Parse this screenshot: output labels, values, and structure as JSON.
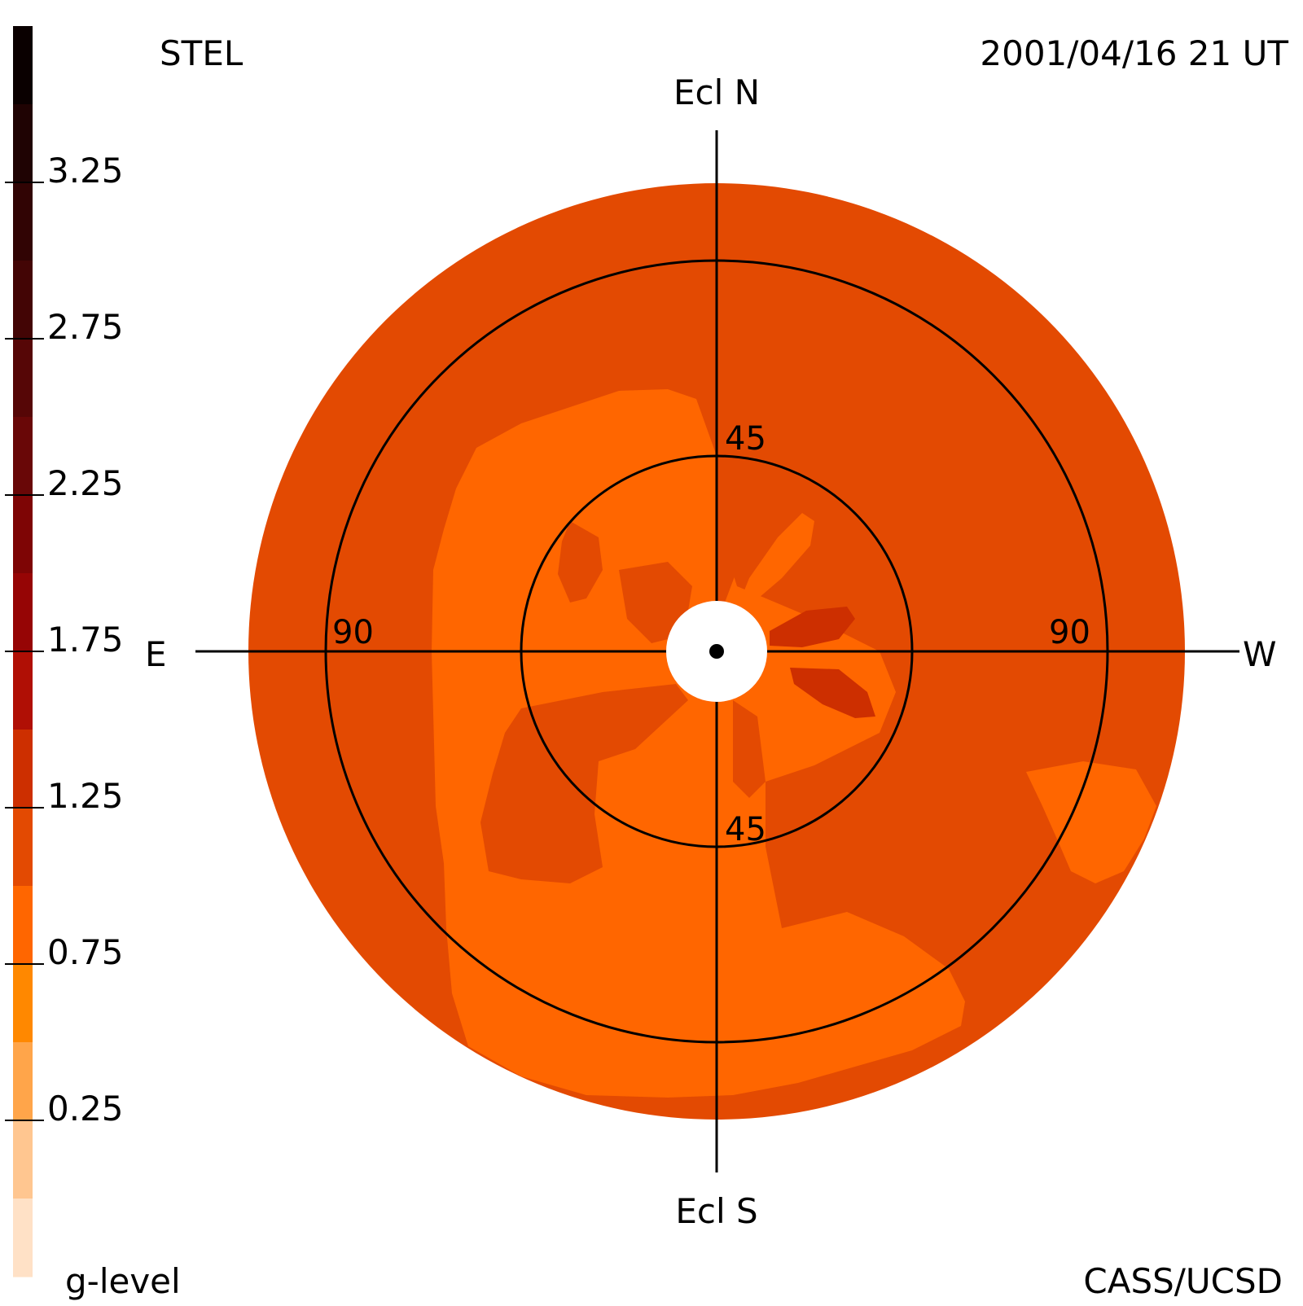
{
  "header": {
    "instrument": "STEL",
    "timestamp": "2001/04/16 21 UT"
  },
  "footer": {
    "credit": "CASS/UCSD"
  },
  "colorbar": {
    "label": "g-level",
    "tick_labels": [
      "3.25",
      "2.75",
      "2.25",
      "1.75",
      "1.25",
      "0.75",
      "0.25"
    ],
    "tick_values": [
      3.25,
      2.75,
      2.25,
      1.75,
      1.25,
      0.75,
      0.25
    ],
    "range": [
      0,
      3.75
    ],
    "bands_top_to_bottom": [
      {
        "from": 3.5,
        "to": 3.75,
        "color": "#0a0000"
      },
      {
        "from": 3.25,
        "to": 3.5,
        "color": "#1f0303"
      },
      {
        "from": 3.0,
        "to": 3.25,
        "color": "#310404"
      },
      {
        "from": 2.75,
        "to": 3.0,
        "color": "#430505"
      },
      {
        "from": 2.5,
        "to": 2.75,
        "color": "#560606"
      },
      {
        "from": 2.25,
        "to": 2.5,
        "color": "#690707"
      },
      {
        "from": 2.0,
        "to": 2.25,
        "color": "#7e0505"
      },
      {
        "from": 1.75,
        "to": 2.0,
        "color": "#960505"
      },
      {
        "from": 1.5,
        "to": 1.75,
        "color": "#b00f05"
      },
      {
        "from": 1.25,
        "to": 1.5,
        "color": "#cd2f00"
      },
      {
        "from": 1.0,
        "to": 1.25,
        "color": "#e34a02"
      },
      {
        "from": 0.75,
        "to": 1.0,
        "color": "#ff6600"
      },
      {
        "from": 0.5,
        "to": 0.75,
        "color": "#ff8800"
      },
      {
        "from": 0.25,
        "to": 0.5,
        "color": "#ffa54a"
      },
      {
        "from": 0.0,
        "to": 0.25,
        "color": "#ffc690"
      },
      {
        "from": -0.25,
        "to": 0.0,
        "color": "#ffe1c6"
      }
    ]
  },
  "map": {
    "north_label": "Ecl N",
    "south_label": "Ecl S",
    "east_label": "E",
    "west_label": "W",
    "elongation_rings_deg": [
      45,
      90
    ],
    "ring_labels": {
      "north_45": "45",
      "south_45": "45",
      "east_90": "90",
      "west_90": "90"
    },
    "colors": {
      "background_level": "#e34a02",
      "low_level": "#ff6600",
      "high_level": "#cd2f00",
      "sun_occulter": "#ffffff",
      "axes": "#000000"
    }
  }
}
